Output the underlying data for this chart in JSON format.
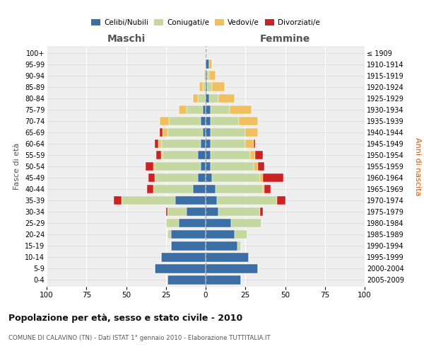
{
  "age_groups": [
    "0-4",
    "5-9",
    "10-14",
    "15-19",
    "20-24",
    "25-29",
    "30-34",
    "35-39",
    "40-44",
    "45-49",
    "50-54",
    "55-59",
    "60-64",
    "65-69",
    "70-74",
    "75-79",
    "80-84",
    "85-89",
    "90-94",
    "95-99",
    "100+"
  ],
  "birth_years": [
    "2005-2009",
    "2000-2004",
    "1995-1999",
    "1990-1994",
    "1985-1989",
    "1980-1984",
    "1975-1979",
    "1970-1974",
    "1965-1969",
    "1960-1964",
    "1955-1959",
    "1950-1954",
    "1945-1949",
    "1940-1944",
    "1935-1939",
    "1930-1934",
    "1925-1929",
    "1920-1924",
    "1915-1919",
    "1910-1914",
    "≤ 1909"
  ],
  "male": {
    "celibi": [
      24,
      32,
      28,
      22,
      22,
      17,
      12,
      19,
      8,
      5,
      3,
      5,
      3,
      2,
      3,
      2,
      0,
      0,
      0,
      0,
      0
    ],
    "coniugati": [
      0,
      0,
      0,
      0,
      2,
      8,
      12,
      34,
      25,
      27,
      29,
      22,
      25,
      22,
      20,
      10,
      5,
      2,
      0,
      0,
      0
    ],
    "vedovi": [
      0,
      0,
      0,
      0,
      0,
      0,
      0,
      0,
      0,
      0,
      1,
      1,
      2,
      3,
      6,
      5,
      3,
      2,
      1,
      0,
      0
    ],
    "divorziati": [
      0,
      0,
      0,
      0,
      0,
      0,
      1,
      5,
      4,
      4,
      5,
      3,
      2,
      2,
      0,
      0,
      0,
      0,
      0,
      0,
      0
    ]
  },
  "female": {
    "nubili": [
      22,
      33,
      27,
      20,
      18,
      16,
      8,
      7,
      6,
      4,
      3,
      3,
      3,
      3,
      3,
      3,
      2,
      1,
      1,
      2,
      0
    ],
    "coniugate": [
      0,
      0,
      0,
      2,
      8,
      19,
      26,
      38,
      30,
      30,
      27,
      25,
      22,
      22,
      18,
      12,
      6,
      3,
      1,
      0,
      0
    ],
    "vedove": [
      0,
      0,
      0,
      0,
      0,
      0,
      0,
      0,
      1,
      2,
      3,
      3,
      5,
      8,
      12,
      14,
      10,
      8,
      4,
      2,
      0
    ],
    "divorziate": [
      0,
      0,
      0,
      0,
      0,
      0,
      2,
      5,
      4,
      13,
      4,
      5,
      1,
      0,
      0,
      0,
      0,
      0,
      0,
      0,
      0
    ]
  },
  "colors": {
    "celibi": "#3a6ea5",
    "coniugati": "#c5d8a0",
    "vedovi": "#f0c060",
    "divorziati": "#cc2222"
  },
  "xlim": 100,
  "title": "Popolazione per età, sesso e stato civile - 2010",
  "subtitle": "COMUNE DI CALAVINO (TN) - Dati ISTAT 1° gennaio 2010 - Elaborazione TUTTITALIA.IT",
  "ylabel_left": "Fasce di età",
  "ylabel_right": "Anni di nascita",
  "label_maschi": "Maschi",
  "label_femmine": "Femmine",
  "background_color": "#eeeeee"
}
